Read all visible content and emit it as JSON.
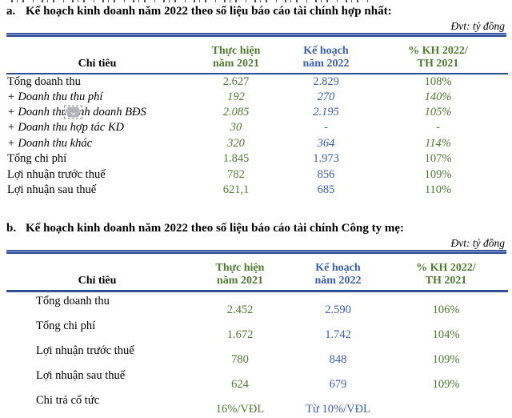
{
  "colors": {
    "green": "#4f7b2f",
    "blue": "#3a5fae",
    "rule_navy": "#2e4c97",
    "rule_light": "#8096cc"
  },
  "sections": [
    {
      "marker": "a.",
      "title": "Kế hoạch kinh doanh năm 2022 theo số liệu báo cáo tài chính hợp nhất:",
      "unit": "Đvt: tỷ đồng",
      "table": {
        "header": {
          "col1": "Chỉ tiêu",
          "col2": [
            "Thực hiện",
            "năm 2021"
          ],
          "col3": [
            "Kế hoạch",
            "năm 2022"
          ],
          "col4": [
            "% KH 2022/",
            "TH 2021"
          ]
        },
        "rows": [
          {
            "label": "Tổng doanh thu",
            "values": [
              "2.627",
              "2.829",
              "108%"
            ],
            "italic": false
          },
          {
            "label": "+ Doanh thu thu phí",
            "values": [
              "192",
              "270",
              "140%"
            ],
            "italic": true
          },
          {
            "label": "+ Doanh thu kinh doanh BĐS",
            "values": [
              "2.085",
              "2.195",
              "105%"
            ],
            "italic": true,
            "icon": "collapse-chevron"
          },
          {
            "label": "+ Doanh thu hợp tác KD",
            "values": [
              "30",
              "-",
              "-"
            ],
            "italic": true
          },
          {
            "label": "+ Doanh thu khác",
            "values": [
              "320",
              "364",
              "114%"
            ],
            "italic": true
          },
          {
            "label": "Tổng chi phí",
            "values": [
              "1.845",
              "1.973",
              "107%"
            ],
            "italic": false
          },
          {
            "label": "Lợi nhuận trước thuế",
            "values": [
              "782",
              "856",
              "109%"
            ],
            "italic": false
          },
          {
            "label": "Lợi nhuận sau thuế",
            "values": [
              "621,1",
              "685",
              "110%"
            ],
            "italic": false
          }
        ]
      }
    },
    {
      "marker": "b.",
      "title": "Kế hoạch kinh doanh năm 2022 theo số liệu báo cáo tài chính Công ty mẹ:",
      "unit": "Đvt: tỷ đồng",
      "table": {
        "header": {
          "col1": "Chỉ tiêu",
          "col2": [
            "Thực hiện",
            "năm 2021"
          ],
          "col3": [
            "Kế hoạch",
            "năm 2022"
          ],
          "col4": [
            "% KH 2022/",
            "TH 2021"
          ]
        },
        "rows": [
          {
            "label": "Tổng doanh thu",
            "values": [
              "2.452",
              "2.590",
              "106%"
            ],
            "italic": false
          },
          {
            "label": "Tổng chi phí",
            "values": [
              "1.672",
              "1.742",
              "104%"
            ],
            "italic": false
          },
          {
            "label": "Lợi nhuận trước thuế",
            "values": [
              "780",
              "848",
              "109%"
            ],
            "italic": false
          },
          {
            "label": "Lợi nhuận sau thuế",
            "values": [
              "624",
              "679",
              "109%"
            ],
            "italic": false
          },
          {
            "label": "Chi trả cổ tức",
            "values": [
              "16%/VĐL",
              "Từ 10%/VĐL",
              ""
            ],
            "italic": false
          }
        ]
      }
    }
  ]
}
